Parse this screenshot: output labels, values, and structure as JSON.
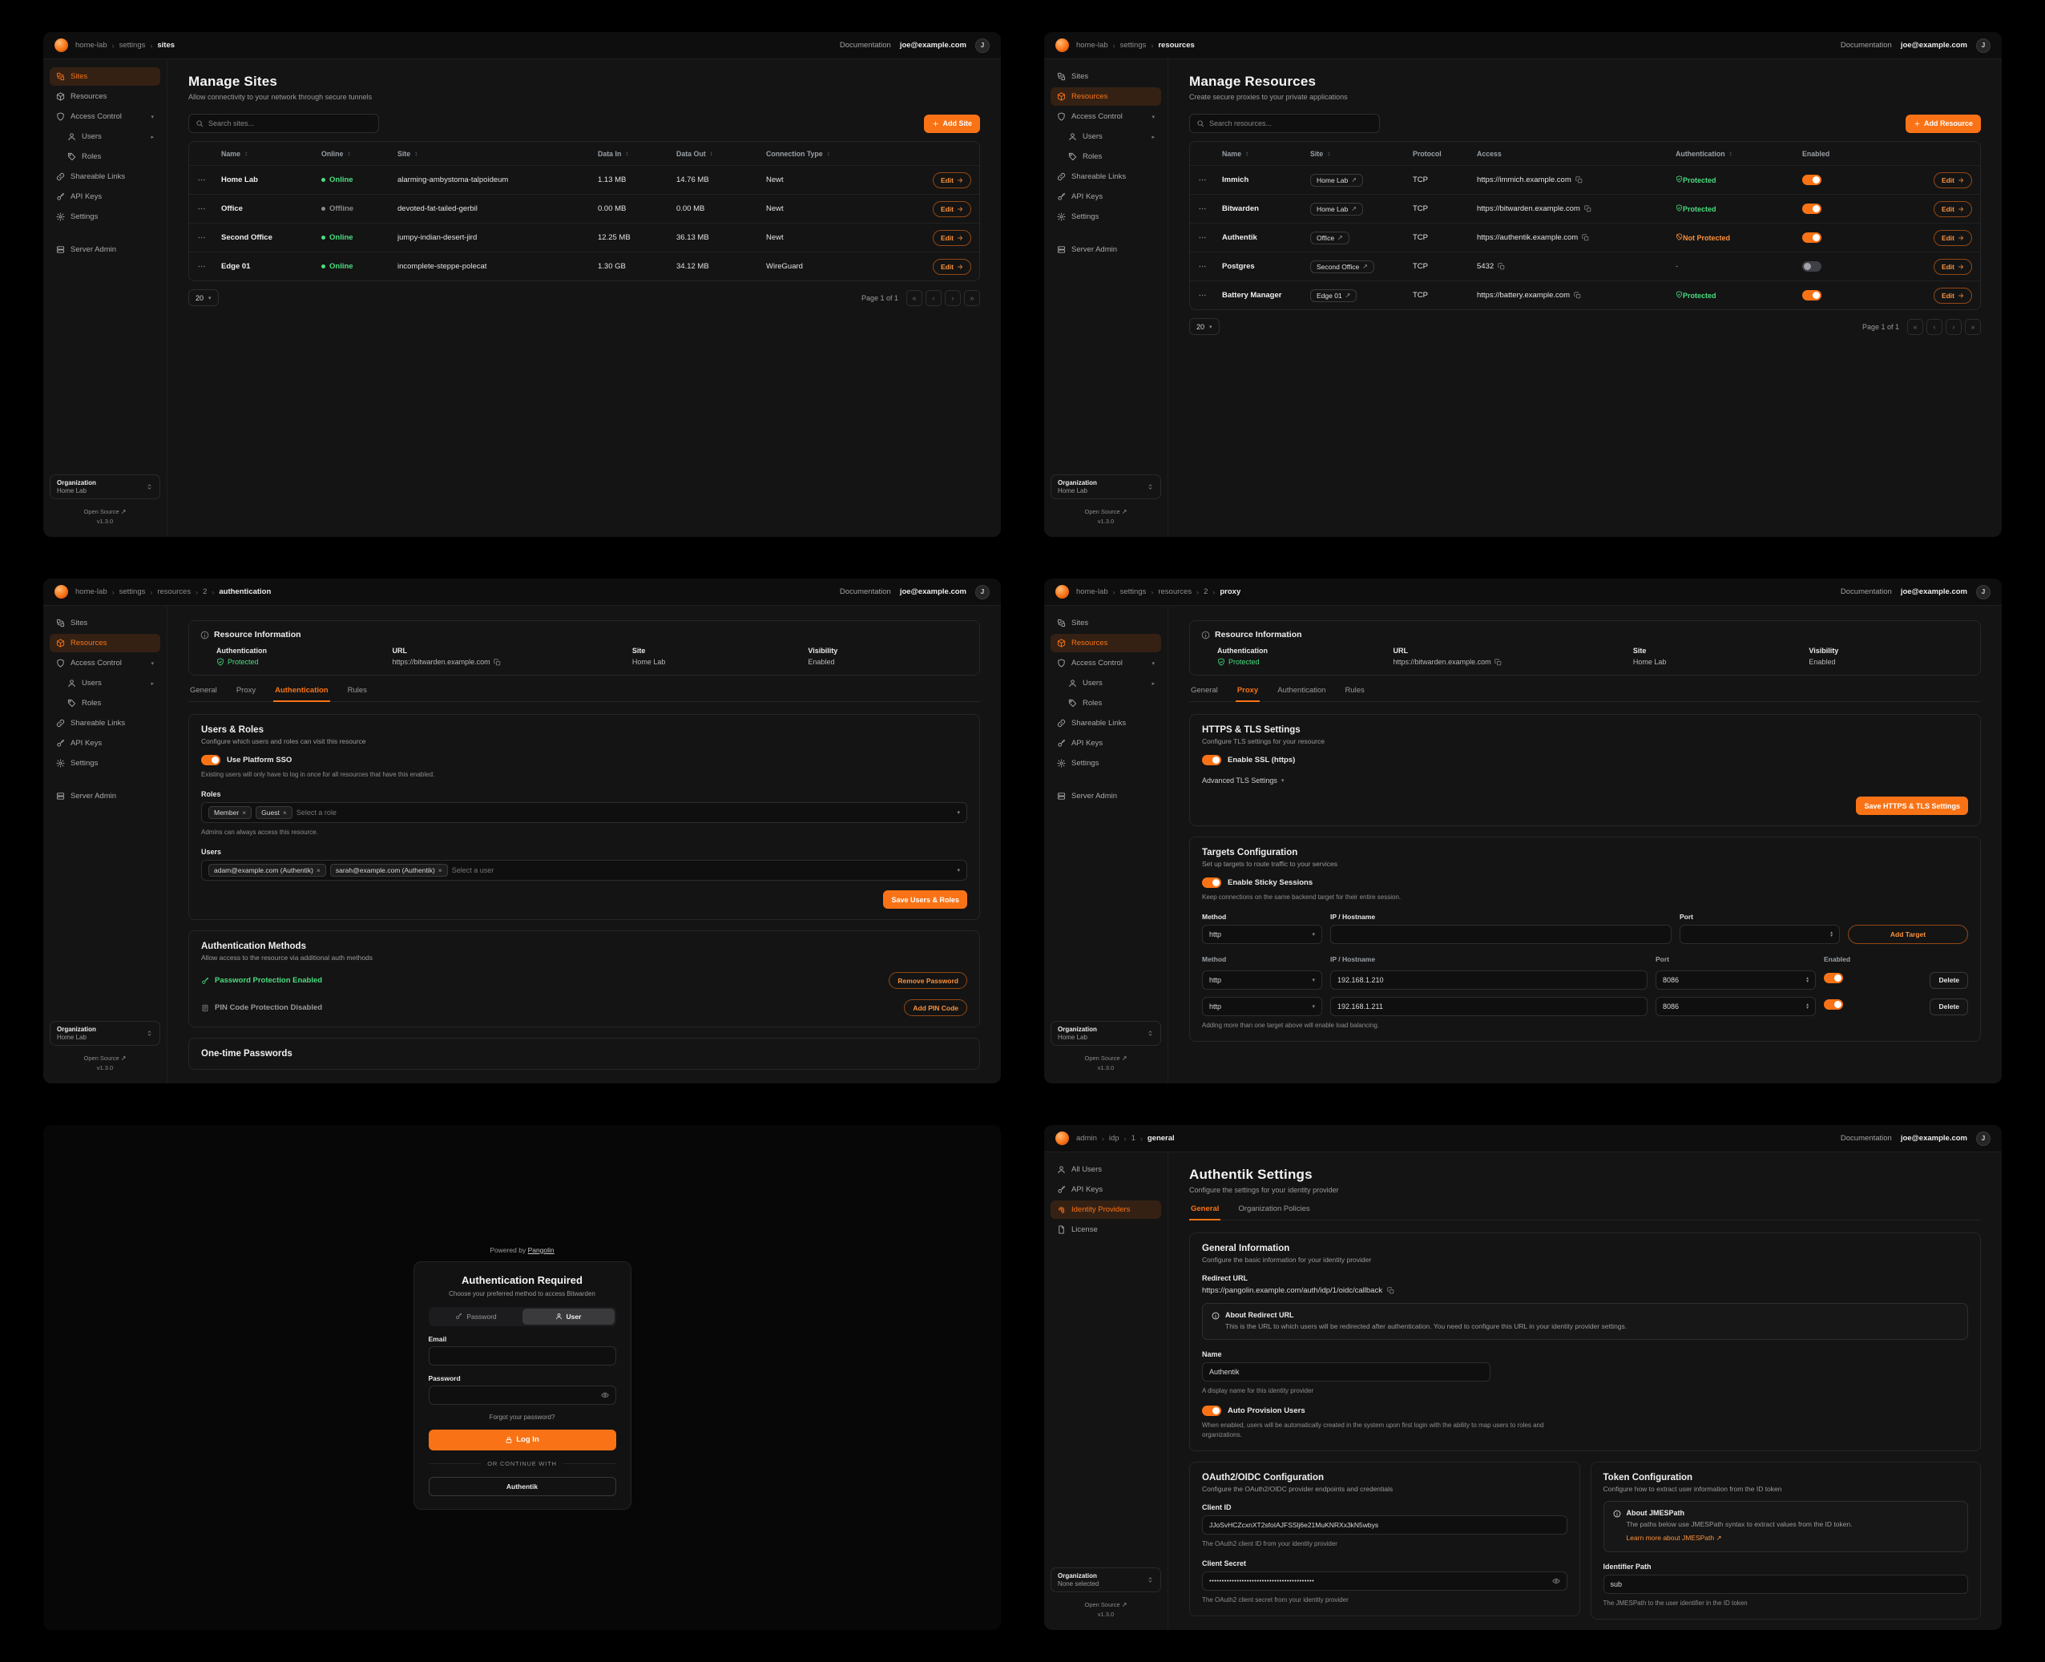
{
  "colors": {
    "accent": "#f97316",
    "green": "#4ade80",
    "warning": "#fb923c",
    "panel_bg": "#141414"
  },
  "chrome": {
    "documentation": "Documentation",
    "email": "joe@example.com",
    "avatar": "J",
    "org_label": "Organization",
    "org_home": "Home Lab",
    "org_none": "None selected",
    "open_source": "Open Source",
    "version": "v1.3.0"
  },
  "labels": {
    "edit": "Edit",
    "delete": "Delete",
    "page_size": "20",
    "page_label": "Page 1 of 1"
  },
  "nav_main": {
    "items": [
      {
        "label": "Sites",
        "icon": "sites"
      },
      {
        "label": "Resources",
        "icon": "resources"
      },
      {
        "label": "Access Control",
        "icon": "shield",
        "chevron": "down"
      },
      {
        "label": "Users",
        "icon": "user",
        "chevron": "right",
        "indent": true
      },
      {
        "label": "Roles",
        "icon": "tag",
        "indent": true
      },
      {
        "label": "Shareable Links",
        "icon": "link"
      },
      {
        "label": "API Keys",
        "icon": "key"
      },
      {
        "label": "Settings",
        "icon": "gear"
      },
      {
        "label": "Server Admin",
        "icon": "server",
        "gap": true
      }
    ]
  },
  "nav_admin": {
    "items": [
      {
        "label": "All Users",
        "icon": "user"
      },
      {
        "label": "API Keys",
        "icon": "key"
      },
      {
        "label": "Identity Providers",
        "icon": "fingerprint"
      },
      {
        "label": "License",
        "icon": "file"
      }
    ]
  },
  "restabs": [
    "General",
    "Proxy",
    "Authentication",
    "Rules"
  ],
  "resinfo": {
    "title": "Resource Information",
    "auth_label": "Authentication",
    "auth_value": "Protected",
    "url_label": "URL",
    "url_value": "https://bitwarden.example.com",
    "site_label": "Site",
    "site_value": "Home Lab",
    "vis_label": "Visibility",
    "vis_value": "Enabled"
  },
  "p1": {
    "breadcrumb": [
      "home-lab",
      "settings",
      "sites"
    ],
    "title": "Manage Sites",
    "subtitle": "Allow connectivity to your network through secure tunnels",
    "search_placeholder": "Search sites...",
    "add_button": "Add Site",
    "table": {
      "headers": [
        "Name",
        "Online",
        "Site",
        "Data In",
        "Data Out",
        "Connection Type"
      ],
      "rows": [
        {
          "name": "Home Lab",
          "status": "Online",
          "online": true,
          "site": "alarming-ambystoma-talpoideum",
          "data_in": "1.13 MB",
          "data_out": "14.76 MB",
          "type": "Newt"
        },
        {
          "name": "Office",
          "status": "Offline",
          "online": false,
          "site": "devoted-fat-tailed-gerbil",
          "data_in": "0.00 MB",
          "data_out": "0.00 MB",
          "type": "Newt"
        },
        {
          "name": "Second Office",
          "status": "Online",
          "online": true,
          "site": "jumpy-indian-desert-jird",
          "data_in": "12.25 MB",
          "data_out": "36.13 MB",
          "type": "Newt"
        },
        {
          "name": "Edge 01",
          "status": "Online",
          "online": true,
          "site": "incomplete-steppe-polecat",
          "data_in": "1.30 GB",
          "data_out": "34.12 MB",
          "type": "WireGuard"
        }
      ]
    }
  },
  "p2": {
    "breadcrumb": [
      "home-lab",
      "settings",
      "resources"
    ],
    "title": "Manage Resources",
    "subtitle": "Create secure proxies to your private applications",
    "search_placeholder": "Search resources...",
    "add_button": "Add Resource",
    "table": {
      "headers": [
        {
          "label": "Name",
          "sort": true
        },
        {
          "label": "Site",
          "sort": true
        },
        {
          "label": "Protocol",
          "sort": false
        },
        {
          "label": "Access",
          "sort": false
        },
        {
          "label": "Authentication",
          "sort": true
        },
        {
          "label": "Enabled",
          "sort": false
        }
      ],
      "rows": [
        {
          "name": "Immich",
          "site": "Home Lab",
          "protocol": "TCP",
          "access": "https://immich.example.com",
          "auth": "Protected",
          "auth_state": "protected",
          "enabled": true
        },
        {
          "name": "Bitwarden",
          "site": "Home Lab",
          "protocol": "TCP",
          "access": "https://bitwarden.example.com",
          "auth": "Protected",
          "auth_state": "protected",
          "enabled": true
        },
        {
          "name": "Authentik",
          "site": "Office",
          "protocol": "TCP",
          "access": "https://authentik.example.com",
          "auth": "Not Protected",
          "auth_state": "unprotected",
          "enabled": true
        },
        {
          "name": "Postgres",
          "site": "Second Office",
          "protocol": "TCP",
          "access": "5432",
          "auth": "-",
          "auth_state": "none",
          "enabled": false
        },
        {
          "name": "Battery Manager",
          "site": "Edge 01",
          "protocol": "TCP",
          "access": "https://battery.example.com",
          "auth": "Protected",
          "auth_state": "protected",
          "enabled": true
        }
      ]
    }
  },
  "p3": {
    "breadcrumb": [
      "home-lab",
      "settings",
      "resources",
      "2",
      "authentication"
    ],
    "ur": {
      "title": "Users & Roles",
      "subtitle": "Configure which users and roles can visit this resource",
      "sso_toggle": "Use Platform SSO",
      "sso_help": "Existing users will only have to log in once for all resources that have this enabled.",
      "roles_label": "Roles",
      "role_chips": [
        "Member",
        "Guest"
      ],
      "roles_placeholder": "Select a role",
      "roles_help": "Admins can always access this resource.",
      "users_label": "Users",
      "user_chips": [
        "adam@example.com (Authentik)",
        "sarah@example.com (Authentik)"
      ],
      "users_placeholder": "Select a user",
      "save_button": "Save Users & Roles"
    },
    "am": {
      "title": "Authentication Methods",
      "subtitle": "Allow access to the resource via additional auth methods",
      "password_status": "Password Protection Enabled",
      "remove_password": "Remove Password",
      "pin_status": "PIN Code Protection Disabled",
      "add_pin": "Add PIN Code"
    },
    "otp_title": "One-time Passwords"
  },
  "p4": {
    "breadcrumb": [
      "home-lab",
      "settings",
      "resources",
      "2",
      "proxy"
    ],
    "https": {
      "title": "HTTPS & TLS Settings",
      "subtitle": "Configure TLS settings for your resource",
      "ssl_toggle": "Enable SSL (https)",
      "advanced": "Advanced TLS Settings",
      "save": "Save HTTPS & TLS Settings"
    },
    "t": {
      "title": "Targets Configuration",
      "subtitle": "Set up targets to route traffic to your services",
      "sticky_toggle": "Enable Sticky Sessions",
      "sticky_help": "Keep connections on the same backend target for their entire session.",
      "method_label": "Method",
      "ip_label": "IP / Hostname",
      "port_label": "Port",
      "method_value": "http",
      "add_button": "Add Target",
      "headers": [
        "Method",
        "IP / Hostname",
        "Port",
        "Enabled"
      ],
      "rows": [
        {
          "method": "http",
          "ip": "192.168.1.210",
          "port": "8086",
          "enabled": true
        },
        {
          "method": "http",
          "ip": "192.168.1.211",
          "port": "8086",
          "enabled": true
        }
      ],
      "note": "Adding more than one target above will enable load balancing."
    }
  },
  "p5": {
    "powered_by": "Powered by",
    "brand": "Pangolin",
    "title": "Authentication Required",
    "subtitle": "Choose your preferred method to access Bitwarden",
    "tab_password": "Password",
    "tab_user": "User",
    "email_label": "Email",
    "password_label": "Password",
    "forgot": "Forgot your password?",
    "login_button": "Log In",
    "divider": "OR CONTINUE WITH",
    "sso_button": "Authentik"
  },
  "p6": {
    "breadcrumb": [
      "admin",
      "idp",
      "1",
      "general"
    ],
    "title": "Authentik Settings",
    "subtitle": "Configure the settings for your identity provider",
    "tabs": [
      "General",
      "Organization Policies"
    ],
    "gi": {
      "title": "General Information",
      "subtitle": "Configure the basic information for your identity provider",
      "redirect_label": "Redirect URL",
      "redirect_value": "https://pangolin.example.com/auth/idp/1/oidc/callback",
      "about_title": "About Redirect URL",
      "about_text": "This is the URL to which users will be redirected after authentication. You need to configure this URL in your identity provider settings.",
      "name_label": "Name",
      "name_value": "Authentik",
      "name_help": "A display name for this identity provider",
      "auto_toggle": "Auto Provision Users",
      "auto_help": "When enabled, users will be automatically created in the system upon first login with the ability to map users to roles and organizations."
    },
    "oauth": {
      "title": "OAuth2/OIDC Configuration",
      "subtitle": "Configure the OAuth2/OIDC provider endpoints and credentials",
      "client_id_label": "Client ID",
      "client_id_value": "JJoSvHCZcxnXT2sfoIAJFSSlj6e21MuKNRXx3kN5wbys",
      "client_id_help": "The OAuth2 client ID from your identity provider",
      "secret_label": "Client Secret",
      "secret_value": "••••••••••••••••••••••••••••••••••••••••••",
      "secret_help": "The OAuth2 client secret from your identity provider"
    },
    "tk": {
      "title": "Token Configuration",
      "subtitle": "Configure how to extract user information from the ID token",
      "about_title": "About JMESPath",
      "about_text": "The paths below use JMESPath syntax to extract values from the ID token.",
      "about_link": "Learn more about JMESPath",
      "id_label": "Identifier Path",
      "id_value": "sub",
      "id_help": "The JMESPath to the user identifier in the ID token"
    }
  }
}
